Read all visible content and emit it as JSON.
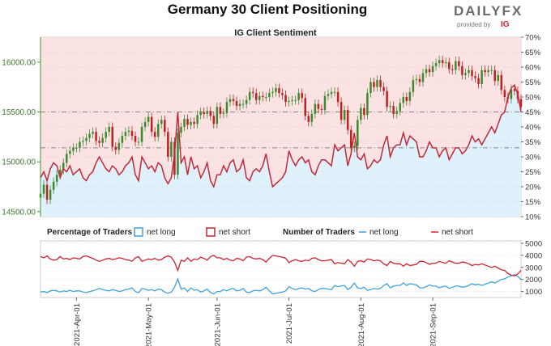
{
  "header": {
    "title": "Germany 30 Client Positioning",
    "logo_main": "DAILYFX",
    "logo_sub": "provided by",
    "logo_brand": "IG"
  },
  "colors": {
    "net_long": "#3ea3dc",
    "net_short": "#d0212f",
    "long_fill": "#dff1fa",
    "short_fill": "#fbe3e3",
    "candle_up": "#3d8a2e",
    "candle_down": "#bf2121",
    "axis_green": "#3d9a2e",
    "logo_gray": "#6b6b6b"
  },
  "chart_data": [
    {
      "type": "candlestick+area",
      "title": "IG Client Sentiment",
      "price_axis": {
        "ticks": [
          "14500.00",
          "15000.00",
          "15500.00",
          "16000.00"
        ],
        "range": [
          14450,
          16250
        ]
      },
      "pct_axis": {
        "ticks": [
          "10%",
          "15%",
          "20%",
          "25%",
          "30%",
          "35%",
          "40%",
          "45%",
          "50%",
          "55%",
          "60%",
          "65%",
          "70%"
        ],
        "range": [
          10,
          70
        ]
      },
      "reference_lines": {
        "price": 15500,
        "pct_upper": 50,
        "pct_lower": 33
      },
      "price": {
        "start": "2021-03-17",
        "close": [
          14680,
          14770,
          14620,
          14720,
          14800,
          14870,
          14920,
          14990,
          15080,
          15110,
          15140,
          15140,
          15200,
          15210,
          15240,
          15280,
          15300,
          15210,
          15190,
          15240,
          15300,
          15350,
          15150,
          15120,
          15190,
          15260,
          15300,
          15310,
          15260,
          15200,
          15200,
          15350,
          15400,
          15450,
          15300,
          15250,
          15380,
          15420,
          15300,
          15050,
          15200,
          14870,
          15290,
          15350,
          15430,
          15370,
          15400,
          15380,
          15470,
          15500,
          15480,
          15510,
          15460,
          15380,
          15550,
          15480,
          15490,
          15600,
          15630,
          15610,
          15560,
          15580,
          15580,
          15620,
          15700,
          15690,
          15620,
          15660,
          15650,
          15650,
          15690,
          15700,
          15740,
          15690,
          15670,
          15600,
          15610,
          15620,
          15620,
          15690,
          15640,
          15460,
          15400,
          15480,
          15580,
          15530,
          15520,
          15660,
          15680,
          15700,
          15700,
          15600,
          15420,
          15520,
          15320,
          15140,
          15160,
          15420,
          15540,
          15470,
          15690,
          15800,
          15750,
          15820,
          15750,
          15710,
          15550,
          15560,
          15480,
          15510,
          15590,
          15650,
          15610,
          15700,
          15820,
          15830,
          15800,
          15890,
          15930,
          15900,
          15960,
          15990,
          16020,
          15990,
          16000,
          15930,
          15920,
          16010,
          15960,
          15870,
          15890,
          15920,
          15860,
          15840,
          15780,
          15920,
          15900,
          15920,
          15920,
          15810,
          15870,
          15720,
          15650,
          15630,
          15730,
          15710,
          15630,
          15550
        ]
      },
      "pct_net_long": [
        23,
        25,
        22,
        26,
        28,
        27,
        23,
        26,
        25,
        27,
        24,
        25,
        26,
        23,
        22,
        24,
        25,
        28,
        30,
        28,
        26,
        25,
        27,
        26,
        24,
        25,
        27,
        28,
        30,
        24,
        22,
        30,
        28,
        26,
        27,
        25,
        28,
        27,
        23,
        21,
        23,
        31,
        45,
        28,
        30,
        24,
        30,
        26,
        27,
        23,
        25,
        28,
        22,
        20,
        24,
        24,
        27,
        25,
        28,
        29,
        25,
        26,
        29,
        23,
        22,
        25,
        26,
        25,
        27,
        31,
        25,
        20,
        21,
        22,
        23,
        25,
        32,
        29,
        27,
        29,
        30,
        28,
        29,
        25,
        24,
        27,
        29,
        29,
        28,
        27,
        34,
        32,
        33,
        34,
        27,
        31,
        38,
        30,
        29,
        31,
        26,
        27,
        29,
        28,
        29,
        34,
        37,
        30,
        33,
        34,
        34,
        38,
        34,
        37,
        36,
        35,
        30,
        30,
        32,
        35,
        33,
        33,
        30,
        32,
        33,
        29,
        31,
        33,
        33,
        31,
        32,
        34,
        37,
        35,
        36,
        34,
        36,
        38,
        40,
        38,
        41,
        44,
        45,
        50,
        53,
        54,
        51,
        45
      ],
      "pct_net_short": [
        77,
        75,
        78,
        74,
        72,
        73,
        77,
        74,
        75,
        73,
        76,
        75,
        74,
        77,
        78,
        76,
        75,
        72,
        70,
        72,
        74,
        75,
        73,
        74,
        76,
        75,
        73,
        72,
        70,
        76,
        78,
        70,
        72,
        74,
        73,
        75,
        72,
        73,
        77,
        79,
        77,
        69,
        55,
        72,
        70,
        76,
        70,
        74,
        73,
        77,
        75,
        72,
        78,
        80,
        76,
        76,
        73,
        75,
        72,
        71,
        75,
        74,
        71,
        77,
        78,
        75,
        74,
        75,
        73,
        69,
        75,
        80,
        79,
        78,
        77,
        75,
        68,
        71,
        73,
        71,
        70,
        72,
        71,
        75,
        76,
        73,
        71,
        71,
        72,
        73,
        66,
        68,
        67,
        66,
        73,
        69,
        62,
        70,
        71,
        69,
        74,
        73,
        71,
        72,
        71,
        66,
        63,
        70,
        67,
        66,
        66,
        62,
        66,
        63,
        64,
        65,
        70,
        70,
        68,
        65,
        67,
        67,
        70,
        68,
        67,
        71,
        69,
        67,
        67,
        69,
        68,
        66,
        63,
        65,
        64,
        66,
        64,
        62,
        60,
        62,
        59,
        56,
        55,
        50,
        47,
        46,
        49,
        55
      ]
    },
    {
      "type": "line",
      "title": "Number of Traders",
      "legend": {
        "pct_label": "Percentage of Traders",
        "pct_long": "net long",
        "pct_short": "net short",
        "num_label": "Number of Traders",
        "num_long": "net long",
        "num_short": "net short"
      },
      "count_axis": {
        "ticks": [
          "1000",
          "2000",
          "3000",
          "4000",
          "5000"
        ],
        "range": [
          500,
          5200
        ]
      },
      "x_ticks": [
        "2021-Apr-01",
        "2021-May-01",
        "2021-Jun-01",
        "2021-Jul-01",
        "2021-Aug-01",
        "2021-Sep-01"
      ],
      "series": [
        {
          "name": "net long",
          "values": [
            950,
            1000,
            900,
            1050,
            1100,
            1050,
            950,
            1050,
            1000,
            1100,
            1000,
            1050,
            1050,
            950,
            900,
            1000,
            1050,
            1150,
            1250,
            1150,
            1100,
            1050,
            1150,
            1100,
            1000,
            1050,
            1150,
            1200,
            1300,
            1000,
            900,
            1250,
            1200,
            1100,
            1150,
            1050,
            1200,
            1150,
            950,
            850,
            950,
            1350,
            2050,
            1200,
            1300,
            1000,
            1300,
            1100,
            1150,
            950,
            1050,
            1200,
            900,
            800,
            1000,
            1000,
            1150,
            1050,
            1200,
            1250,
            1050,
            1100,
            1250,
            950,
            900,
            1050,
            1100,
            1050,
            1150,
            1350,
            1050,
            800,
            850,
            900,
            950,
            1050,
            1400,
            1250,
            1150,
            1250,
            1300,
            1200,
            1250,
            1050,
            1000,
            1150,
            1250,
            1250,
            1200,
            1150,
            1500,
            1400,
            1450,
            1500,
            1150,
            1350,
            1700,
            1300,
            1250,
            1350,
            1100,
            1150,
            1250,
            1200,
            1250,
            1500,
            1650,
            1300,
            1450,
            1500,
            1500,
            1700,
            1500,
            1650,
            1600,
            1550,
            1300,
            1300,
            1400,
            1550,
            1450,
            1450,
            1300,
            1400,
            1450,
            1250,
            1350,
            1450,
            1450,
            1350,
            1400,
            1500,
            1650,
            1550,
            1600,
            1500,
            1600,
            1700,
            1800,
            1700,
            1850,
            2000,
            2050,
            2200,
            2300,
            2400,
            2250,
            2000
          ]
        },
        {
          "name": "net short",
          "values": [
            3900,
            3800,
            3950,
            3700,
            3600,
            3650,
            3900,
            3700,
            3750,
            3650,
            3800,
            3750,
            3700,
            3900,
            3950,
            3850,
            3750,
            3600,
            3500,
            3600,
            3700,
            3750,
            3650,
            3700,
            3800,
            3750,
            3650,
            3600,
            3500,
            3800,
            3900,
            3500,
            3600,
            3700,
            3650,
            3750,
            3600,
            3650,
            3850,
            3950,
            3850,
            3450,
            2750,
            3600,
            3500,
            3800,
            3500,
            3700,
            3650,
            3850,
            3750,
            3600,
            3900,
            4000,
            3800,
            3800,
            3650,
            3750,
            3600,
            3550,
            3750,
            3700,
            3550,
            3850,
            3900,
            3750,
            3700,
            3750,
            3650,
            3450,
            3750,
            4000,
            3950,
            3900,
            3850,
            3750,
            3400,
            3550,
            3650,
            3550,
            3500,
            3600,
            3550,
            3750,
            3800,
            3650,
            3550,
            3550,
            3600,
            3650,
            3300,
            3400,
            3350,
            3300,
            3650,
            3450,
            3100,
            3500,
            3550,
            3450,
            3700,
            3650,
            3550,
            3600,
            3550,
            3300,
            3150,
            3500,
            3350,
            3300,
            3300,
            3100,
            3300,
            3150,
            3200,
            3250,
            3500,
            3500,
            3400,
            3250,
            3350,
            3350,
            3500,
            3400,
            3350,
            3550,
            3450,
            3350,
            3350,
            3450,
            3400,
            3300,
            3150,
            3250,
            3200,
            3300,
            3200,
            3100,
            3000,
            3100,
            2950,
            2800,
            2750,
            2500,
            2350,
            2300,
            2450,
            2750
          ]
        }
      ]
    }
  ]
}
